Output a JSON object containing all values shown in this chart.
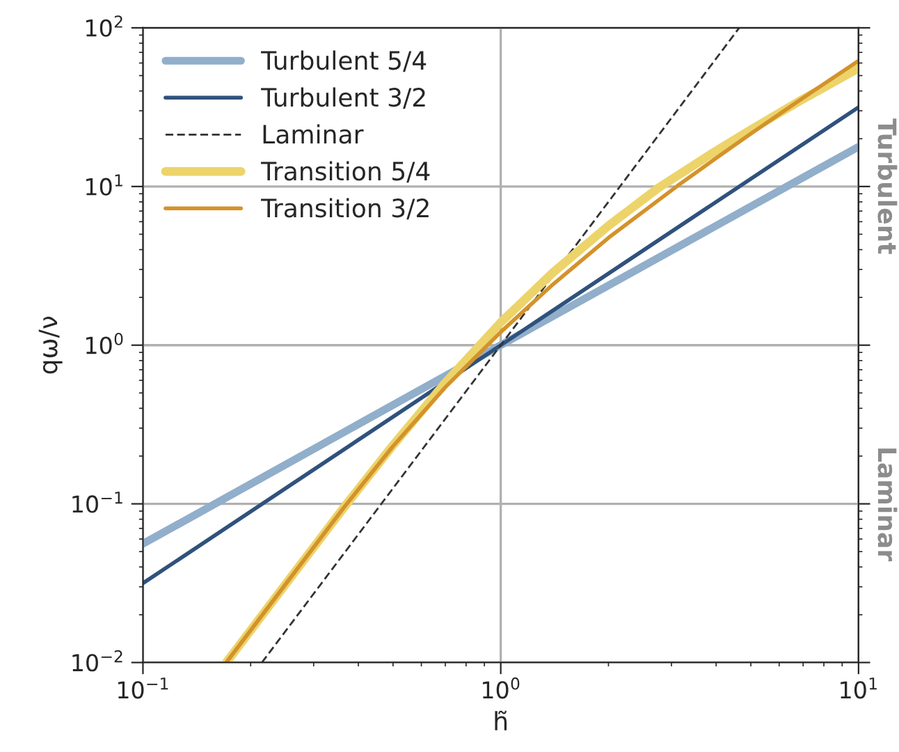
{
  "chart_data": {
    "type": "line",
    "xlabel": "h̃",
    "ylabel": "qω/ν",
    "log": "xy",
    "grid": true,
    "legend": "top left",
    "xlim": [
      0.1,
      10
    ],
    "ylim": [
      0.01,
      100
    ],
    "xticks": [
      {
        "value": 0.1,
        "label": "10$^{−1}$"
      },
      {
        "value": 1,
        "label": "10$^{0}$"
      },
      {
        "value": 10,
        "label": "10$^{1}$"
      }
    ],
    "yticks": [
      {
        "value": 0.01,
        "label": "10$^{−2}$"
      },
      {
        "value": 0.1,
        "label": "10$^{−1}$"
      },
      {
        "value": 1,
        "label": "10$^{0}$"
      },
      {
        "value": 10,
        "label": "10$^{1}$"
      },
      {
        "value": 100,
        "label": "10$^{2}$"
      }
    ],
    "series": [
      {
        "name": "Turbulent 5/4",
        "color": "#91aecb",
        "x": [
          0.1,
          1,
          10
        ],
        "values": [
          0.056,
          1,
          17.8
        ]
      },
      {
        "name": "Turbulent 3/2",
        "color": "#2f527c",
        "x": [
          0.1,
          1,
          10
        ],
        "values": [
          0.0316,
          1,
          31.6
        ]
      },
      {
        "name": "Laminar",
        "color": "#333333",
        "line_style": "dashed",
        "x": [
          0.215,
          1,
          4.64
        ],
        "values": [
          0.01,
          1,
          100
        ]
      },
      {
        "name": "Transition 5/4",
        "color": "#ecd46a",
        "x": [
          0.171,
          0.25,
          0.366,
          0.5,
          0.7,
          1,
          1.4,
          2,
          2.76,
          4,
          5,
          7,
          10
        ],
        "values": [
          0.01,
          0.031,
          0.096,
          0.234,
          0.58,
          1.39,
          2.87,
          5.66,
          9.8,
          16.8,
          22.8,
          35.6,
          55.6
        ]
      },
      {
        "name": "Transition 3/2",
        "color": "#d4922a",
        "x": [
          0.171,
          0.25,
          0.366,
          0.5,
          0.7,
          1,
          1.4,
          2,
          3.12,
          4,
          5,
          7,
          10
        ],
        "values": [
          0.01,
          0.031,
          0.096,
          0.231,
          0.543,
          1.21,
          2.42,
          4.75,
          10.1,
          15.1,
          21.5,
          36.2,
          62
        ]
      }
    ],
    "annotations": [
      "Turbulent",
      "Laminar"
    ]
  }
}
